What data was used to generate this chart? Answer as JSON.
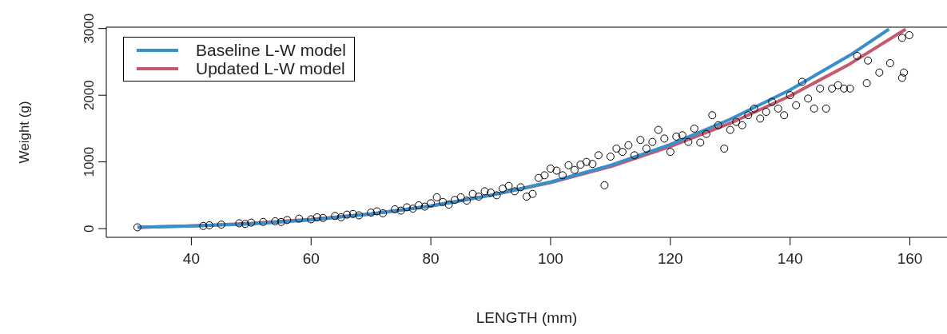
{
  "chart_data": {
    "type": "scatter",
    "xlabel": "LENGTH (mm)",
    "ylabel": "Weight (g)",
    "xlim": [
      25.8,
      166.2
    ],
    "ylim": [
      -130,
      3020
    ],
    "xticks": [
      40,
      60,
      80,
      100,
      120,
      140,
      160
    ],
    "yticks": [
      0,
      1000,
      2000,
      3000
    ],
    "grid": false,
    "legend": "top left",
    "series": [
      {
        "marker": "circle",
        "color": "#000000",
        "x": [
          31,
          42,
          43,
          45,
          48,
          49,
          50,
          52,
          54,
          55,
          56,
          58,
          60,
          61,
          62,
          64,
          65,
          66,
          67,
          68,
          70,
          71,
          72,
          74,
          75,
          76,
          77,
          78,
          79,
          80,
          81,
          82,
          83,
          84,
          85,
          86,
          87,
          88,
          89,
          90,
          91,
          92,
          93,
          94,
          95,
          96,
          97,
          98,
          99,
          100,
          101,
          102,
          103,
          104,
          105,
          106,
          107,
          108,
          109,
          110,
          111,
          112,
          113,
          114,
          115,
          116,
          117,
          118,
          119,
          120,
          121,
          122,
          123,
          124,
          125,
          126,
          127,
          128,
          129,
          130,
          131,
          132,
          133,
          134,
          135,
          136,
          137,
          138,
          139,
          140,
          141,
          142,
          143,
          144,
          145,
          146,
          147,
          148,
          149,
          150,
          151.2,
          152.8,
          153,
          154.9,
          156.7,
          158.7,
          158.7,
          159,
          159.9
        ],
        "values": [
          20,
          40,
          50,
          60,
          80,
          70,
          90,
          100,
          110,
          100,
          130,
          150,
          140,
          170,
          160,
          190,
          170,
          210,
          220,
          200,
          240,
          260,
          230,
          290,
          270,
          320,
          300,
          350,
          330,
          380,
          470,
          400,
          360,
          430,
          470,
          420,
          520,
          480,
          560,
          540,
          500,
          600,
          640,
          560,
          620,
          480,
          520,
          760,
          800,
          900,
          870,
          800,
          950,
          880,
          960,
          1000,
          970,
          1100,
          650,
          1080,
          1200,
          1150,
          1250,
          1100,
          1330,
          1200,
          1300,
          1480,
          1350,
          1150,
          1380,
          1400,
          1300,
          1500,
          1290,
          1420,
          1700,
          1550,
          1200,
          1480,
          1600,
          1550,
          1700,
          1800,
          1650,
          1750,
          1900,
          1800,
          1700,
          2000,
          1850,
          2200,
          1950,
          1800,
          2100,
          1800,
          2100,
          2150,
          2100,
          2100,
          2590,
          2180,
          2520,
          2340,
          2480,
          2860,
          2260,
          2340,
          2900
        ]
      },
      {
        "type": "line",
        "marker": "none",
        "name": "Updated L-W model",
        "color": "#c55a6e",
        "x": [
          31,
          40,
          50,
          60,
          70,
          80,
          90,
          100,
          110,
          120,
          130,
          140,
          150,
          159.3
        ],
        "values": [
          20,
          40,
          80,
          140,
          220,
          340,
          500,
          690,
          930,
          1230,
          1580,
          1990,
          2470,
          2990
        ]
      },
      {
        "type": "line",
        "marker": "none",
        "name": "Baseline L-W model",
        "color": "#3a8fcb",
        "x": [
          31,
          40,
          50,
          60,
          70,
          80,
          90,
          100,
          110,
          120,
          130,
          140,
          150,
          156.5
        ],
        "values": [
          20,
          40,
          70,
          130,
          220,
          340,
          500,
          700,
          950,
          1260,
          1640,
          2080,
          2600,
          2990
        ]
      }
    ]
  }
}
